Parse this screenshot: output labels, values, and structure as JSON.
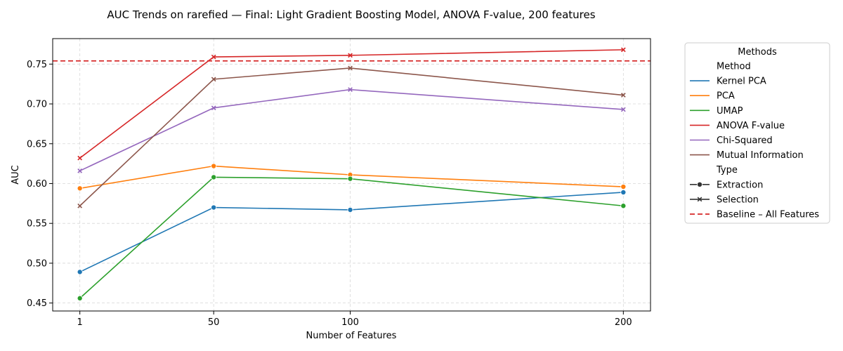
{
  "chart_data": {
    "type": "line",
    "title": "AUC Trends on rarefied — Final: Light Gradient Boosting Model, ANOVA F-value, 200 features",
    "xlabel": "Number of Features",
    "ylabel": "AUC",
    "x": [
      1,
      50,
      100,
      200
    ],
    "xticks": [
      "1",
      "50",
      "100",
      "200"
    ],
    "yticks": [
      "0.45",
      "0.50",
      "0.55",
      "0.60",
      "0.65",
      "0.70",
      "0.75"
    ],
    "ylim": [
      0.44,
      0.782
    ],
    "xlim": [
      -8.95,
      209.95
    ],
    "grid": true,
    "legend_position": "outside-right",
    "series": [
      {
        "name": "Kernel PCA",
        "type": "Extraction",
        "color": "#1f77b4",
        "values": [
          0.489,
          0.57,
          0.567,
          0.589
        ]
      },
      {
        "name": "PCA",
        "type": "Extraction",
        "color": "#ff7f0e",
        "values": [
          0.594,
          0.622,
          0.611,
          0.596
        ]
      },
      {
        "name": "UMAP",
        "type": "Extraction",
        "color": "#2ca02c",
        "values": [
          0.456,
          0.608,
          0.606,
          0.572
        ]
      },
      {
        "name": "ANOVA F-value",
        "type": "Selection",
        "color": "#d62728",
        "values": [
          0.632,
          0.759,
          0.761,
          0.768
        ]
      },
      {
        "name": "Chi-Squared",
        "type": "Selection",
        "color": "#9467bd",
        "values": [
          0.616,
          0.695,
          0.718,
          0.693
        ]
      },
      {
        "name": "Mutual Information",
        "type": "Selection",
        "color": "#8c564b",
        "values": [
          0.572,
          0.731,
          0.745,
          0.711
        ]
      }
    ],
    "baseline": {
      "name": "Baseline – All Features",
      "value": 0.754,
      "color": "#d62728"
    },
    "legend": {
      "title": "Methods",
      "method_header": "Method",
      "type_header": "Type",
      "types": [
        {
          "name": "Extraction",
          "marker": "circle"
        },
        {
          "name": "Selection",
          "marker": "x"
        }
      ]
    }
  }
}
